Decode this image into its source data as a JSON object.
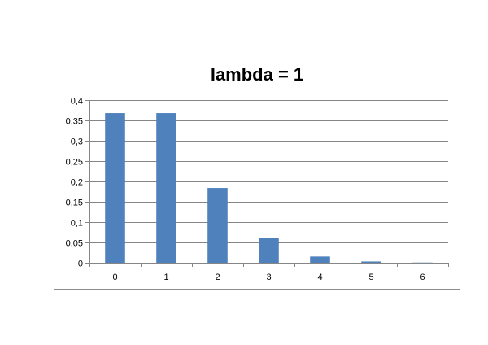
{
  "chart_data": {
    "type": "bar",
    "title": "lambda = 1",
    "xlabel": "",
    "ylabel": "",
    "categories": [
      "0",
      "1",
      "2",
      "3",
      "4",
      "5",
      "6"
    ],
    "values": [
      0.3679,
      0.3679,
      0.1839,
      0.0613,
      0.0153,
      0.0031,
      0.0005
    ],
    "ylim": [
      0,
      0.4
    ],
    "yticks": [
      "0",
      "0,05",
      "0,1",
      "0,15",
      "0,2",
      "0,25",
      "0,3",
      "0,35",
      "0,4"
    ],
    "grid": true,
    "legend": "none",
    "bar_color": "#4f81bd",
    "grid_color": "#868686"
  }
}
